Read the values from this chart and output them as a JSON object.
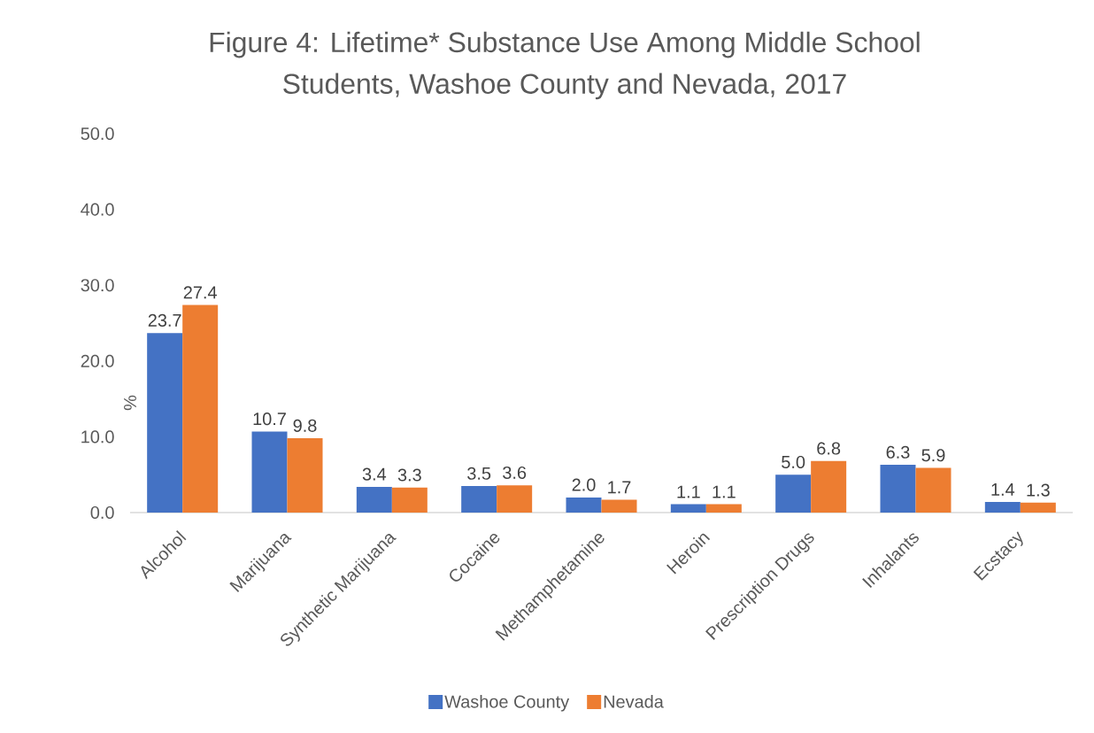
{
  "chart_data": {
    "type": "bar",
    "title": "Figure 4: Lifetime* Substance Use Among Middle School Students, Washoe County and Nevada, 2017",
    "ylabel": "%",
    "categories": [
      "Alcohol",
      "Marijuana",
      "Synthetic Marijuana",
      "Cocaine",
      "Methamphetamine",
      "Heroin",
      "Prescription Drugs",
      "Inhalants",
      "Ecstacy"
    ],
    "series": [
      {
        "name": "Washoe County",
        "color": "#4472c4",
        "values": [
          23.7,
          10.7,
          3.4,
          3.5,
          2.0,
          1.1,
          5.0,
          6.3,
          1.4
        ],
        "value_labels": [
          "23.7",
          "10.7",
          "3.4",
          "3.5",
          "2.0",
          "1.1",
          "5.0",
          "6.3",
          "1.4"
        ]
      },
      {
        "name": "Nevada",
        "color": "#ed7d31",
        "values": [
          27.4,
          9.8,
          3.3,
          3.6,
          1.7,
          1.1,
          6.8,
          5.9,
          1.3
        ],
        "value_labels": [
          "27.4",
          "9.8",
          "3.3",
          "3.6",
          "1.7",
          "1.1",
          "6.8",
          "5.9",
          "1.3"
        ]
      }
    ],
    "ylim": [
      0,
      50
    ],
    "yticks": [
      {
        "value": 0,
        "label": "0.0"
      },
      {
        "value": 10,
        "label": "10.0"
      },
      {
        "value": 20,
        "label": "20.0"
      },
      {
        "value": 30,
        "label": "30.0"
      },
      {
        "value": 40,
        "label": "40.0"
      },
      {
        "value": 50,
        "label": "50.0"
      }
    ],
    "legend": "bottom"
  }
}
